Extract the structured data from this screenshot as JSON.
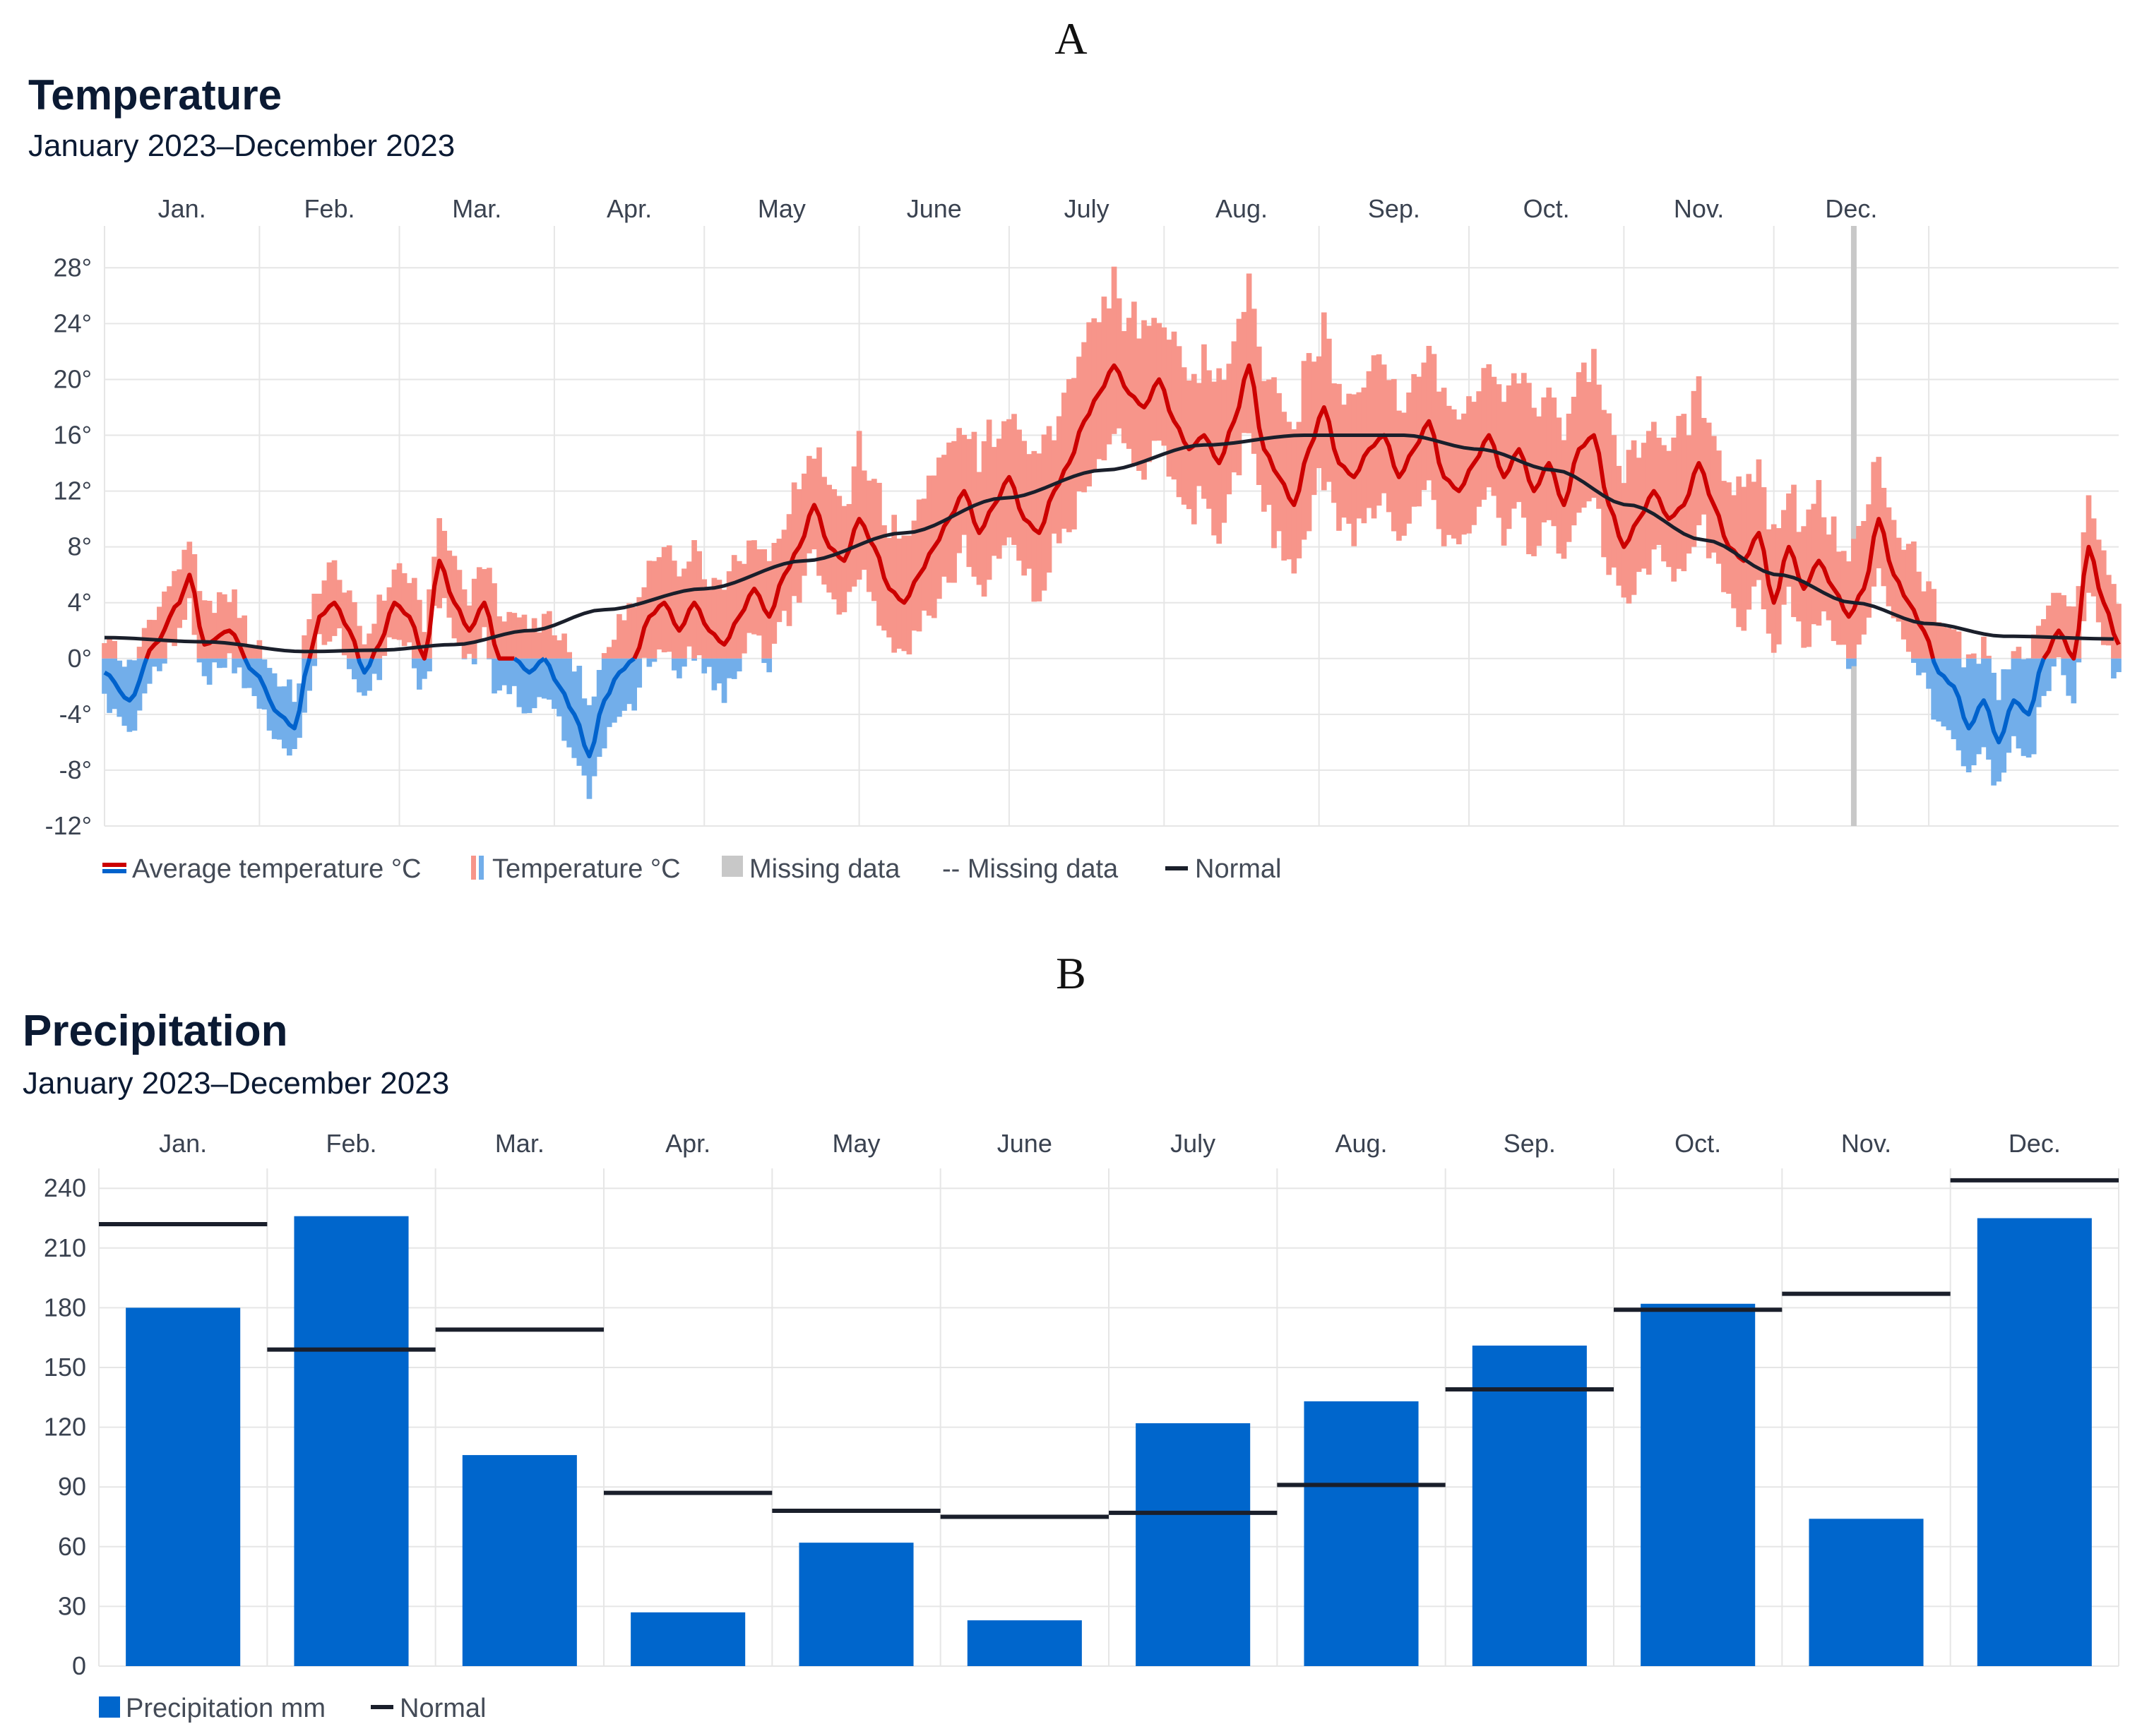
{
  "panels": {
    "a": "A",
    "b": "B"
  },
  "colors": {
    "warm_line": "#cc0000",
    "warm_range": "#f7958a",
    "cold_line": "#0062cc",
    "cold_range": "#72aeea",
    "normal": "#1a1f2b",
    "missing": "#c8c8c8",
    "bar": "#0066cc",
    "grid": "#e6e6e6"
  },
  "temperature": {
    "title": "Temperature",
    "subtitle": "January 2023–December 2023",
    "legend": {
      "average": "Average temperature °C",
      "range": "Temperature °C",
      "missing_area": "Missing data",
      "missing_line": "-- Missing data",
      "normal": "Normal"
    }
  },
  "precipitation": {
    "title": "Precipitation",
    "subtitle": "January 2023–December 2023",
    "legend": {
      "bar": "Precipitation mm",
      "normal": "Normal"
    }
  },
  "chart_data": [
    {
      "type": "line",
      "title": "Temperature",
      "subtitle": "January 2023–December 2023",
      "x_unit": "day of year",
      "months": [
        "Jan.",
        "Feb.",
        "Mar.",
        "Apr.",
        "May",
        "June",
        "July",
        "Aug.",
        "Sep.",
        "Oct.",
        "Nov.",
        "Dec."
      ],
      "month_start_days": [
        0,
        31,
        59,
        90,
        120,
        151,
        181,
        212,
        243,
        273,
        304,
        334,
        365
      ],
      "ylim": [
        -12,
        31
      ],
      "yticks": [
        28,
        24,
        20,
        16,
        12,
        8,
        4,
        0,
        -4,
        -8,
        -12
      ],
      "ytick_labels": [
        "28°",
        "24°",
        "20°",
        "16°",
        "12°",
        "8°",
        "4°",
        "0°",
        "-4°",
        "-8°",
        "-12°"
      ],
      "missing_data_day": 350,
      "average_anchors": [
        [
          0,
          -1
        ],
        [
          5,
          -3
        ],
        [
          10,
          1
        ],
        [
          15,
          4
        ],
        [
          17,
          6
        ],
        [
          20,
          1
        ],
        [
          25,
          2
        ],
        [
          30,
          -1
        ],
        [
          35,
          -4
        ],
        [
          38,
          -5
        ],
        [
          41,
          0
        ],
        [
          43,
          3
        ],
        [
          46,
          4
        ],
        [
          49,
          2
        ],
        [
          52,
          -1
        ],
        [
          55,
          1
        ],
        [
          58,
          4
        ],
        [
          61,
          3
        ],
        [
          64,
          0
        ],
        [
          67,
          7
        ],
        [
          70,
          4
        ],
        [
          73,
          2
        ],
        [
          76,
          4
        ],
        [
          79,
          0
        ],
        [
          82,
          0
        ],
        [
          85,
          -1
        ],
        [
          88,
          0
        ],
        [
          91,
          -2
        ],
        [
          94,
          -4
        ],
        [
          97,
          -7
        ],
        [
          100,
          -3
        ],
        [
          103,
          -1
        ],
        [
          106,
          0
        ],
        [
          109,
          3
        ],
        [
          112,
          4
        ],
        [
          115,
          2
        ],
        [
          118,
          4
        ],
        [
          121,
          2
        ],
        [
          124,
          1
        ],
        [
          127,
          3
        ],
        [
          130,
          5
        ],
        [
          133,
          3
        ],
        [
          136,
          6
        ],
        [
          139,
          8
        ],
        [
          142,
          11
        ],
        [
          145,
          8
        ],
        [
          148,
          7
        ],
        [
          151,
          10
        ],
        [
          154,
          8
        ],
        [
          157,
          5
        ],
        [
          160,
          4
        ],
        [
          163,
          6
        ],
        [
          166,
          8
        ],
        [
          169,
          10
        ],
        [
          172,
          12
        ],
        [
          175,
          9
        ],
        [
          178,
          11
        ],
        [
          181,
          13
        ],
        [
          184,
          10
        ],
        [
          187,
          9
        ],
        [
          190,
          12
        ],
        [
          193,
          14
        ],
        [
          196,
          17
        ],
        [
          199,
          19
        ],
        [
          202,
          21
        ],
        [
          205,
          19
        ],
        [
          208,
          18
        ],
        [
          211,
          20
        ],
        [
          214,
          17
        ],
        [
          217,
          15
        ],
        [
          220,
          16
        ],
        [
          223,
          14
        ],
        [
          226,
          17
        ],
        [
          229,
          21
        ],
        [
          232,
          15
        ],
        [
          235,
          13
        ],
        [
          238,
          11
        ],
        [
          241,
          15
        ],
        [
          244,
          18
        ],
        [
          247,
          14
        ],
        [
          250,
          13
        ],
        [
          253,
          15
        ],
        [
          256,
          16
        ],
        [
          259,
          13
        ],
        [
          262,
          15
        ],
        [
          265,
          17
        ],
        [
          268,
          13
        ],
        [
          271,
          12
        ],
        [
          274,
          14
        ],
        [
          277,
          16
        ],
        [
          280,
          13
        ],
        [
          283,
          15
        ],
        [
          286,
          12
        ],
        [
          289,
          14
        ],
        [
          292,
          11
        ],
        [
          295,
          15
        ],
        [
          298,
          16
        ],
        [
          301,
          11
        ],
        [
          304,
          8
        ],
        [
          307,
          10
        ],
        [
          310,
          12
        ],
        [
          313,
          10
        ],
        [
          316,
          11
        ],
        [
          319,
          14
        ],
        [
          322,
          11
        ],
        [
          325,
          8
        ],
        [
          328,
          7
        ],
        [
          331,
          9
        ],
        [
          334,
          4
        ],
        [
          337,
          8
        ],
        [
          340,
          5
        ],
        [
          343,
          7
        ],
        [
          346,
          5
        ],
        [
          349,
          3
        ],
        [
          352,
          5
        ],
        [
          355,
          10
        ],
        [
          358,
          6
        ],
        [
          361,
          4
        ],
        [
          364,
          2
        ],
        [
          367,
          -1
        ],
        [
          370,
          -2
        ],
        [
          373,
          -5
        ],
        [
          376,
          -3
        ],
        [
          379,
          -6
        ],
        [
          382,
          -3
        ],
        [
          385,
          -4
        ],
        [
          388,
          0
        ],
        [
          391,
          2
        ],
        [
          394,
          0
        ],
        [
          397,
          8
        ],
        [
          400,
          4
        ],
        [
          403,
          1
        ]
      ],
      "normal_anchors": [
        [
          0,
          1.5
        ],
        [
          20,
          1.2
        ],
        [
          40,
          0.5
        ],
        [
          55,
          0.6
        ],
        [
          70,
          1
        ],
        [
          85,
          2
        ],
        [
          100,
          3.5
        ],
        [
          120,
          5
        ],
        [
          140,
          7
        ],
        [
          160,
          9
        ],
        [
          180,
          11.5
        ],
        [
          200,
          13.5
        ],
        [
          220,
          15.3
        ],
        [
          240,
          16
        ],
        [
          260,
          16
        ],
        [
          275,
          15
        ],
        [
          290,
          13.5
        ],
        [
          305,
          11
        ],
        [
          320,
          8.5
        ],
        [
          335,
          6
        ],
        [
          350,
          4
        ],
        [
          365,
          2.5
        ],
        [
          380,
          1.6
        ],
        [
          403,
          1.4
        ]
      ],
      "x_range_days": [
        0,
        403
      ]
    },
    {
      "type": "bar",
      "title": "Precipitation",
      "subtitle": "January 2023–December 2023",
      "categories": [
        "Jan.",
        "Feb.",
        "Mar.",
        "Apr.",
        "May",
        "June",
        "July",
        "Aug.",
        "Sep.",
        "Oct.",
        "Nov.",
        "Dec."
      ],
      "series": [
        {
          "name": "Precipitation mm",
          "values": [
            180,
            226,
            106,
            27,
            62,
            23,
            122,
            133,
            161,
            182,
            74,
            225
          ]
        },
        {
          "name": "Normal",
          "values": [
            222,
            159,
            169,
            87,
            78,
            75,
            77,
            91,
            139,
            179,
            187,
            244
          ]
        }
      ],
      "ylim": [
        0,
        250
      ],
      "yticks": [
        0,
        30,
        60,
        90,
        120,
        150,
        180,
        210,
        240
      ]
    }
  ]
}
